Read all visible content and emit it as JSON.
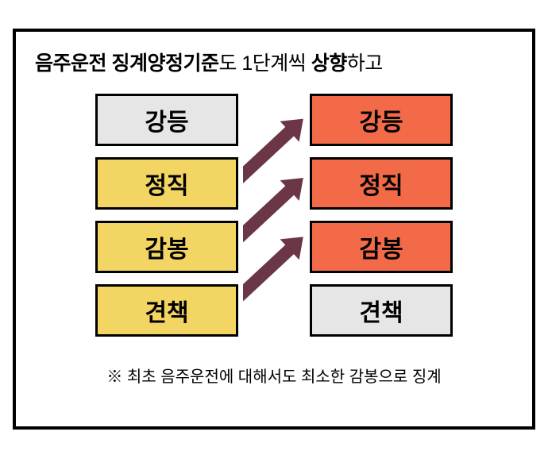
{
  "title": {
    "part1_bold": "음주운전 징계양정기준",
    "part2_regular": "도 1단계씩 ",
    "part3_bold": "상향",
    "part4_regular": "하고"
  },
  "levels": [
    "강등",
    "정직",
    "감봉",
    "견책"
  ],
  "colors": {
    "gray": "#e6e6e6",
    "yellow": "#f3d563",
    "orange": "#f36a48",
    "arrow_fill": "#6b3646",
    "border": "#000000",
    "text": "#000000"
  },
  "left_column_colors": [
    "gray",
    "yellow",
    "yellow",
    "yellow"
  ],
  "right_column_colors": [
    "orange",
    "orange",
    "orange",
    "gray"
  ],
  "arrows": [
    {
      "from_index": 1,
      "to_index": 0
    },
    {
      "from_index": 2,
      "to_index": 1
    },
    {
      "from_index": 3,
      "to_index": 2
    }
  ],
  "footnote": "※ 최초 음주운전에 대해서도 최소한 감봉으로 징계",
  "cell": {
    "width": 180,
    "height": 66,
    "gap": 14,
    "font_size": 30,
    "border_width": 3
  }
}
